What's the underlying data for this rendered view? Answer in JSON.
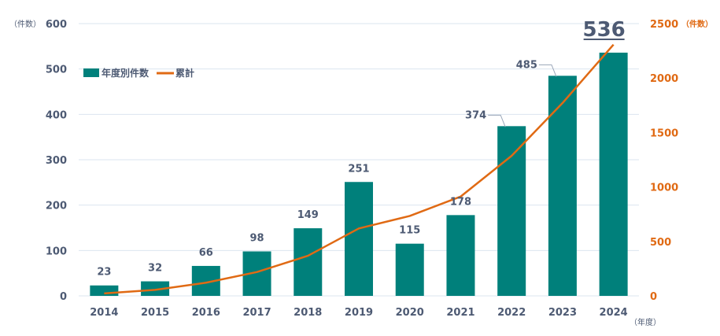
{
  "chart_data": {
    "type": "bar+line",
    "categories": [
      "2014",
      "2015",
      "2016",
      "2017",
      "2018",
      "2019",
      "2020",
      "2021",
      "2022",
      "2023",
      "2024"
    ],
    "series": [
      {
        "name": "年度別件数",
        "type": "bar",
        "axis": "left",
        "values": [
          23,
          32,
          66,
          98,
          149,
          251,
          115,
          178,
          374,
          485,
          536
        ],
        "value_labels": [
          "23",
          "32",
          "66",
          "98",
          "149",
          "251",
          "115",
          "178",
          "374",
          "485",
          "536"
        ]
      },
      {
        "name": "累計",
        "type": "line",
        "axis": "right",
        "values": [
          23,
          55,
          121,
          219,
          368,
          619,
          734,
          912,
          1286,
          1771,
          2307
        ]
      }
    ],
    "left_axis": {
      "unit": "（件数）",
      "ylim": [
        0,
        600
      ],
      "ticks": [
        "0",
        "100",
        "200",
        "300",
        "400",
        "500",
        "600"
      ]
    },
    "right_axis": {
      "unit": "（件数）",
      "ylim": [
        0,
        2500
      ],
      "ticks": [
        "0",
        "500",
        "1000",
        "1500",
        "2000",
        "2500"
      ]
    },
    "x_axis": {
      "unit": "（年度）"
    },
    "legend": {
      "position": "top-left",
      "bar_label": "年度別件数",
      "line_label": "累計"
    },
    "colors": {
      "bar": "#00807b",
      "line": "#e06a14",
      "grid": "#dbe4ef",
      "text": "#4d5a73",
      "right_axis": "#e06a14"
    }
  }
}
